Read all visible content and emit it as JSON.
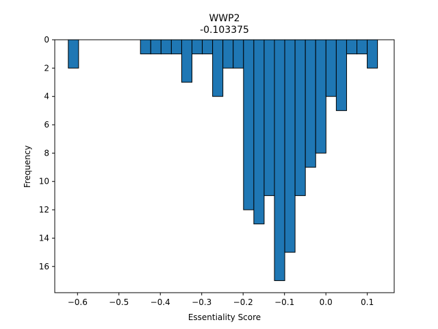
{
  "chart_data": {
    "type": "bar",
    "title": "WWP2",
    "subtitle": "-0.103375",
    "xlabel": "Essentiality Score",
    "ylabel": "Frequency",
    "y_inverted": true,
    "xlim": [
      -0.655,
      0.165
    ],
    "ylim": [
      0,
      17.85
    ],
    "xticks": [
      -0.6,
      -0.5,
      -0.4,
      -0.3,
      -0.2,
      -0.1,
      0.0,
      0.1
    ],
    "xtick_labels": [
      "−0.6",
      "−0.5",
      "−0.4",
      "−0.3",
      "−0.2",
      "−0.1",
      "0.0",
      "0.1"
    ],
    "yticks": [
      0,
      2,
      4,
      6,
      8,
      10,
      12,
      14,
      16
    ],
    "ytick_labels": [
      "0",
      "2",
      "4",
      "6",
      "8",
      "10",
      "12",
      "14",
      "16"
    ],
    "bin_width": 0.0249,
    "bins": [
      {
        "x0": -0.6223,
        "x1": -0.5974,
        "count": 2
      },
      {
        "x0": -0.5974,
        "x1": -0.5725,
        "count": 0
      },
      {
        "x0": -0.5725,
        "x1": -0.5476,
        "count": 0
      },
      {
        "x0": -0.5476,
        "x1": -0.5227,
        "count": 0
      },
      {
        "x0": -0.5227,
        "x1": -0.4978,
        "count": 0
      },
      {
        "x0": -0.4978,
        "x1": -0.4729,
        "count": 0
      },
      {
        "x0": -0.4729,
        "x1": -0.448,
        "count": 0
      },
      {
        "x0": -0.448,
        "x1": -0.4231,
        "count": 1
      },
      {
        "x0": -0.4231,
        "x1": -0.3982,
        "count": 1
      },
      {
        "x0": -0.3982,
        "x1": -0.3733,
        "count": 1
      },
      {
        "x0": -0.3733,
        "x1": -0.3484,
        "count": 1
      },
      {
        "x0": -0.3484,
        "x1": -0.3235,
        "count": 3
      },
      {
        "x0": -0.3235,
        "x1": -0.2986,
        "count": 1
      },
      {
        "x0": -0.2986,
        "x1": -0.2737,
        "count": 1
      },
      {
        "x0": -0.2737,
        "x1": -0.2488,
        "count": 4
      },
      {
        "x0": -0.2488,
        "x1": -0.2239,
        "count": 2
      },
      {
        "x0": -0.2239,
        "x1": -0.199,
        "count": 2
      },
      {
        "x0": -0.199,
        "x1": -0.1741,
        "count": 12
      },
      {
        "x0": -0.1741,
        "x1": -0.1492,
        "count": 13
      },
      {
        "x0": -0.1492,
        "x1": -0.1243,
        "count": 11
      },
      {
        "x0": -0.1243,
        "x1": -0.0994,
        "count": 17
      },
      {
        "x0": -0.0994,
        "x1": -0.0745,
        "count": 15
      },
      {
        "x0": -0.0745,
        "x1": -0.0496,
        "count": 11
      },
      {
        "x0": -0.0496,
        "x1": -0.0247,
        "count": 9
      },
      {
        "x0": -0.0247,
        "x1": 0.0002,
        "count": 8
      },
      {
        "x0": 0.0002,
        "x1": 0.0251,
        "count": 4
      },
      {
        "x0": 0.0251,
        "x1": 0.05,
        "count": 5
      },
      {
        "x0": 0.05,
        "x1": 0.0749,
        "count": 1
      },
      {
        "x0": 0.0749,
        "x1": 0.0998,
        "count": 1
      },
      {
        "x0": 0.0998,
        "x1": 0.1247,
        "count": 2
      }
    ],
    "bar_color": "#1f77b4",
    "edge_color": "#000000",
    "grid": false,
    "legend": "none"
  }
}
